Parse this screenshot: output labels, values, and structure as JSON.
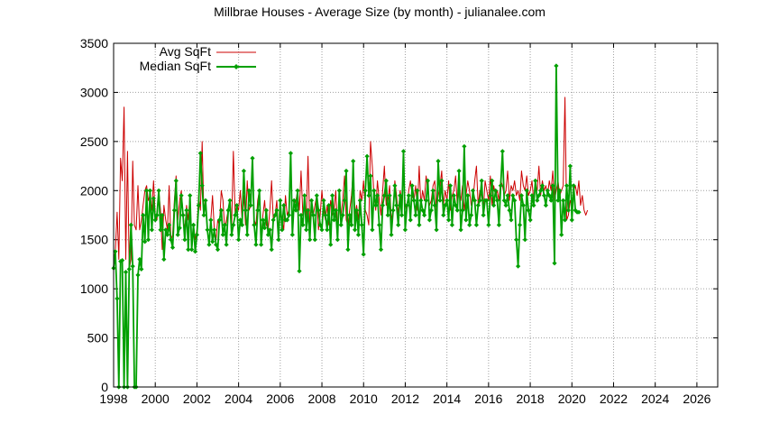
{
  "chart_data": {
    "type": "line",
    "title": "Millbrae Houses - Average Size (by month) - julianalee.com",
    "xlabel": "",
    "ylabel": "",
    "xlim": [
      1998,
      2027
    ],
    "ylim": [
      0,
      3500
    ],
    "x_ticks": [
      "1998",
      "2000",
      "2002",
      "2004",
      "2006",
      "2008",
      "2010",
      "2012",
      "2014",
      "2016",
      "2018",
      "2020",
      "2022",
      "2024",
      "2026"
    ],
    "y_ticks": [
      "0",
      "500",
      "1000",
      "1500",
      "2000",
      "2500",
      "3000",
      "3500"
    ],
    "grid": true,
    "legend_position": "top-left",
    "series": [
      {
        "name": "Avg SqFt",
        "color": "#cc0000",
        "marker": "none",
        "x_start": 1998.0,
        "x_step_months": 1,
        "values": [
          1300,
          1380,
          1780,
          1300,
          2330,
          2100,
          2850,
          1300,
          2400,
          1200,
          1300,
          2300,
          1650,
          1600,
          2050,
          1600,
          1700,
          1850,
          2000,
          2050,
          1900,
          1950,
          1800,
          2100,
          1750,
          1700,
          2000,
          1800,
          1400,
          1850,
          1700,
          1600,
          2050,
          1500,
          1550,
          1900,
          2150,
          1700,
          1900,
          2000,
          1750,
          1600,
          1850,
          1700,
          1950,
          1400,
          1650,
          1500,
          1600,
          1950,
          1800,
          2500,
          1750,
          1900,
          1600,
          1450,
          1700,
          1950,
          1600,
          1500,
          1700,
          1650,
          2000,
          1900,
          1600,
          1700,
          1800,
          1900,
          1650,
          2400,
          1750,
          1850,
          1800,
          2000,
          1700,
          1950,
          1650,
          2100,
          1800,
          1850,
          2300,
          1700,
          1650,
          1900,
          2000,
          1500,
          1750,
          1900,
          1650,
          1600,
          1800,
          2100,
          1700,
          1750,
          1900,
          1550,
          1850,
          1700,
          1600,
          1950,
          1750,
          1800,
          2300,
          1650,
          1850,
          1900,
          2000,
          1800,
          2200,
          1750,
          1900,
          1700,
          2350,
          1650,
          1800,
          1750,
          1850,
          1950,
          1600,
          1750,
          2000,
          1800,
          1700,
          1850,
          1650,
          1900,
          1750,
          1800,
          2000,
          1600,
          1850,
          1750,
          1900,
          2150,
          1700,
          1650,
          1800,
          1950,
          2200,
          1750,
          1850,
          1700,
          2000,
          1900,
          2100,
          1800,
          1750,
          1650,
          2500,
          2250,
          1950,
          1800,
          2100,
          1900,
          1750,
          2000,
          2250,
          1850,
          1900,
          2050,
          1700,
          1800,
          2100,
          1950,
          1750,
          2000,
          1900,
          2200,
          1850,
          1800,
          2000,
          2100,
          1950,
          1900,
          2050,
          1800,
          2250,
          1850,
          2000,
          1900,
          2150,
          2000,
          1850,
          1900,
          2050,
          2100,
          1800,
          1950,
          2050,
          2200,
          1850,
          2000,
          1900,
          2100,
          1800,
          1950,
          2000,
          2150,
          1850,
          2000,
          1900,
          2050,
          1800,
          1950,
          2100,
          2000,
          1850,
          1900,
          2100,
          2250,
          1850,
          2000,
          1950,
          1800,
          2100,
          2000,
          1900,
          2150,
          1850,
          2050,
          1950,
          2000,
          1900,
          2100,
          2050,
          1950,
          2000,
          2200,
          1900,
          2050,
          2000,
          2100,
          1950,
          2000,
          1900,
          2200,
          2050,
          2000,
          2150,
          1950,
          2000,
          2100,
          1900,
          2050,
          2000,
          2250,
          1950,
          2100,
          2000,
          2050,
          1950,
          2100,
          2000,
          2200,
          1900,
          2000,
          2100,
          1950,
          2000,
          2050,
          2950,
          1700,
          1750,
          1900,
          1850,
          2000,
          2050,
          1950,
          2100,
          1850,
          1950,
          1800,
          1750,
          1800
        ]
      },
      {
        "name": "Median SqFt",
        "color": "#00a000",
        "marker": "diamond",
        "x_start": 1998.0,
        "x_step_months": 1,
        "values": [
          1210,
          1380,
          900,
          0,
          1280,
          1290,
          0,
          1170,
          0,
          1200,
          1650,
          1230,
          0,
          0,
          1140,
          1300,
          1200,
          1750,
          1480,
          2000,
          1500,
          2000,
          1600,
          1920,
          1700,
          1750,
          2000,
          1600,
          1750,
          1300,
          1600,
          1550,
          1650,
          1500,
          1420,
          1800,
          2100,
          1550,
          1620,
          1950,
          1750,
          1500,
          1800,
          1400,
          1950,
          1400,
          1650,
          1380,
          1550,
          1850,
          2380,
          2050,
          1750,
          1900,
          1600,
          1450,
          1700,
          1480,
          1600,
          1450,
          1400,
          1700,
          1800,
          1550,
          1650,
          1450,
          1800,
          1900,
          1550,
          1650,
          1750,
          1850,
          1500,
          1700,
          1650,
          2200,
          1800,
          1550,
          2000,
          1850,
          2330,
          1650,
          1450,
          1800,
          2000,
          1450,
          1700,
          1620,
          1800,
          1550,
          1600,
          1400,
          1700,
          1750,
          1800,
          1500,
          1900,
          1600,
          1850,
          1700,
          1700,
          1750,
          2380,
          1550,
          1900,
          1800,
          2000,
          1180,
          1750,
          1650,
          1950,
          1600,
          1800,
          1500,
          1900,
          1750,
          1500,
          1950,
          1800,
          1650,
          1600,
          1900,
          1750,
          1600,
          1850,
          1450,
          1950,
          1700,
          1800,
          1500,
          2000,
          1650,
          1750,
          1900,
          2200,
          1400,
          1750,
          1650,
          2300,
          1600,
          1800,
          1550,
          1900,
          1650,
          1350,
          2000,
          2350,
          1950,
          2150,
          1600,
          2000,
          1850,
          1950,
          1650,
          1400,
          1850,
          1950,
          2100,
          1750,
          1950,
          1550,
          1800,
          2050,
          1850,
          1650,
          1950,
          1750,
          2400,
          1600,
          1850,
          1950,
          1700,
          2050,
          1900,
          1750,
          2000,
          1650,
          1900,
          1800,
          1750,
          1900,
          2100,
          1700,
          1800,
          2000,
          1850,
          1600,
          2300,
          1900,
          2100,
          1750,
          1850,
          1900,
          1700,
          2050,
          1650,
          1950,
          1850,
          1800,
          2200,
          1600,
          1800,
          2450,
          1700,
          1950,
          1650,
          1750,
          2000,
          1900,
          1650,
          1850,
          1900,
          2100,
          1750,
          1900,
          1900,
          1650,
          1950,
          2100,
          1850,
          2000,
          1900,
          1650,
          2050,
          2400,
          1900,
          1850,
          1950,
          1800,
          1700,
          1950,
          1900,
          1500,
          1230,
          1650,
          1950,
          1850,
          1500,
          2000,
          1800,
          1700,
          1950,
          1850,
          2100,
          1900,
          1950,
          2000,
          2050,
          1950,
          1850,
          2000,
          1950,
          1900,
          2050,
          1260,
          3270,
          1900,
          2000,
          1550,
          1900,
          1700,
          2050,
          1800,
          2250,
          1700,
          2050,
          1800,
          1780,
          1780
        ]
      }
    ]
  }
}
